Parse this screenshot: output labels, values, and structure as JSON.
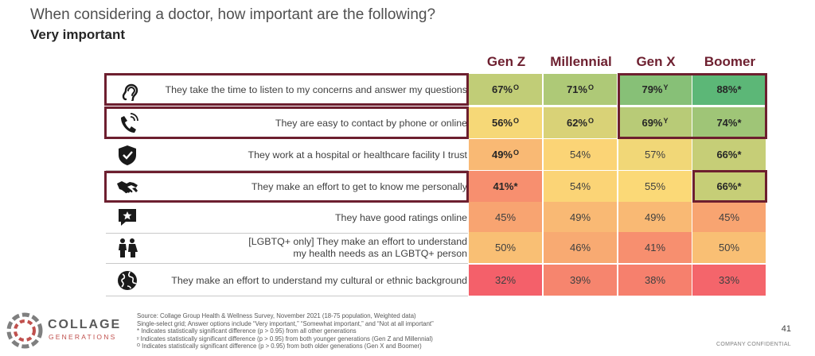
{
  "title": "When considering a doctor, how important are the following?",
  "subtitle": "Very important",
  "chart_data": {
    "type": "heatmap",
    "title": "When considering a doctor, how important are the following?",
    "subtitle": "Very important",
    "columns": [
      "Gen Z",
      "Millennial",
      "Gen X",
      "Boomer"
    ],
    "rows": [
      {
        "icon": "ear-icon",
        "label_lines": [
          "They take the time to listen to my concerns and answer my questions"
        ],
        "values": [
          67,
          71,
          79,
          88
        ],
        "marks": [
          "O",
          "O",
          "Y",
          "*"
        ],
        "highlighted": [
          false,
          false,
          true,
          true
        ]
      },
      {
        "icon": "phone-icon",
        "label_lines": [
          "They are easy to contact by phone or online"
        ],
        "values": [
          56,
          62,
          69,
          74
        ],
        "marks": [
          "O",
          "O",
          "Y",
          "*"
        ],
        "highlighted": [
          false,
          false,
          true,
          true
        ]
      },
      {
        "icon": "shield-icon",
        "label_lines": [
          "They work at a hospital or healthcare facility I trust"
        ],
        "values": [
          49,
          54,
          57,
          66
        ],
        "marks": [
          "O",
          "",
          "",
          "*"
        ],
        "highlighted": [
          false,
          false,
          false,
          false
        ]
      },
      {
        "icon": "handshake-icon",
        "label_lines": [
          "They make an effort to get to know me personally"
        ],
        "values": [
          41,
          54,
          55,
          66
        ],
        "marks": [
          "*",
          "",
          "",
          "*"
        ],
        "highlighted": [
          false,
          false,
          false,
          true
        ]
      },
      {
        "icon": "rating-icon",
        "label_lines": [
          "They have good ratings online"
        ],
        "values": [
          45,
          49,
          49,
          45
        ],
        "marks": [
          "",
          "",
          "",
          ""
        ],
        "highlighted": [
          false,
          false,
          false,
          false
        ]
      },
      {
        "icon": "couple-icon",
        "label_lines": [
          "[LGBTQ+ only] They make an effort to understand",
          "my health needs as an LGBTQ+ person"
        ],
        "values": [
          50,
          46,
          41,
          50
        ],
        "marks": [
          "",
          "",
          "",
          ""
        ],
        "highlighted": [
          false,
          false,
          false,
          false
        ]
      },
      {
        "icon": "globe-icon",
        "label_lines": [
          "They make an effort to understand my cultural or ethnic background"
        ],
        "values": [
          32,
          39,
          38,
          33
        ],
        "marks": [
          "",
          "",
          "",
          ""
        ],
        "highlighted": [
          false,
          false,
          false,
          false
        ]
      }
    ],
    "color_scale": {
      "low": "#f4606a",
      "mid": "#fbd977",
      "high": "#5cb777"
    }
  },
  "source_lines": [
    "Source: Collage Group Health & Wellness Survey, November 2021 (18-75 population, Weighted data)",
    "Single-select grid; Answer options include “Very important,” “Somewhat important,” and “Not at all important”",
    "* Indicates statistically significant difference (p > 0.95) from all other generations",
    "ʸ Indicates statistically significant difference (p > 0.95) from both younger generations (Gen Z and Millennial)",
    "ᴼ Indicates statistically significant difference (p > 0.95) from both older generations (Gen X and Boomer)"
  ],
  "logo": {
    "main": "COLLAGE",
    "sub": "GENERATIONS"
  },
  "page_number": "41",
  "confidential": "COMPANY CONFIDENTIAL"
}
